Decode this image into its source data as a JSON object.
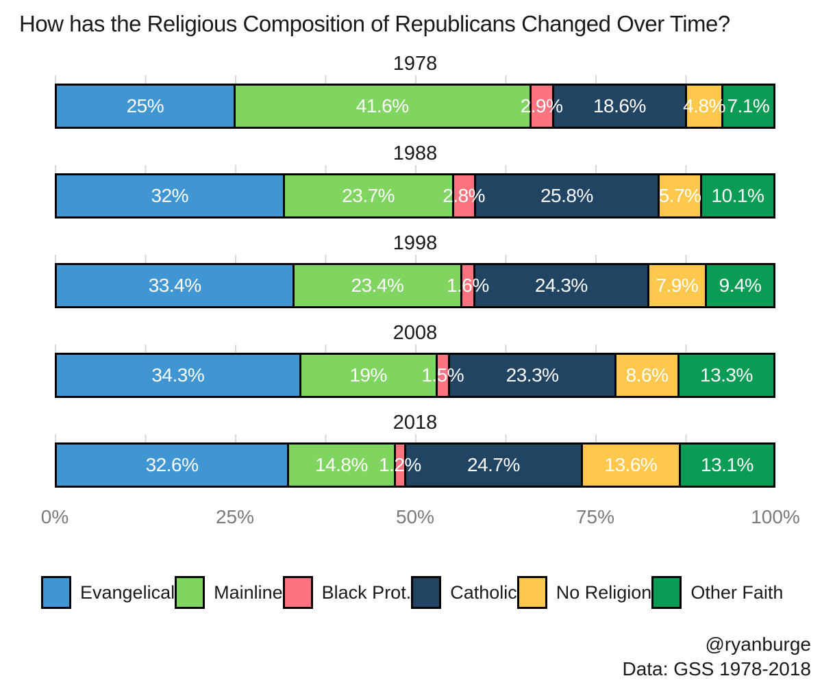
{
  "title": "How has the Religious Composition of Republicans Changed Over Time?",
  "footer": {
    "handle": "@ryanburge",
    "source": "Data: GSS 1978-2018"
  },
  "legend": {
    "items": [
      {
        "label": "Evangelical",
        "color": "#4096D2"
      },
      {
        "label": "Mainline",
        "color": "#7FD55F"
      },
      {
        "label": "Black Prot.",
        "color": "#FB737F"
      },
      {
        "label": "Catholic",
        "color": "#214463"
      },
      {
        "label": "No Religion",
        "color": "#FEC84D"
      },
      {
        "label": "Other Faith",
        "color": "#0A9B55"
      }
    ]
  },
  "chart_data": {
    "type": "bar",
    "stacked": true,
    "orientation": "horizontal",
    "categories": [
      "1978",
      "1988",
      "1998",
      "2008",
      "2018"
    ],
    "series": [
      {
        "name": "Evangelical",
        "color": "#4096D2",
        "values": [
          25,
          32,
          33.4,
          34.3,
          32.6
        ],
        "labels": [
          "25%",
          "32%",
          "33.4%",
          "34.3%",
          "32.6%"
        ]
      },
      {
        "name": "Mainline",
        "color": "#7FD55F",
        "values": [
          41.6,
          23.7,
          23.4,
          19,
          14.8
        ],
        "labels": [
          "41.6%",
          "23.7%",
          "23.4%",
          "19%",
          "14.8%"
        ]
      },
      {
        "name": "Black Prot.",
        "color": "#FB737F",
        "values": [
          2.9,
          2.8,
          1.6,
          1.5,
          1.2
        ],
        "labels": [
          "2.9%",
          "2.8%",
          "1.6%",
          "1.5%",
          "1.2%"
        ]
      },
      {
        "name": "Catholic",
        "color": "#214463",
        "values": [
          18.6,
          25.8,
          24.3,
          23.3,
          24.7
        ],
        "labels": [
          "18.6%",
          "25.8%",
          "24.3%",
          "23.3%",
          "24.7%"
        ]
      },
      {
        "name": "No Religion",
        "color": "#FEC84D",
        "values": [
          4.8,
          5.7,
          7.9,
          8.6,
          13.6
        ],
        "labels": [
          "4.8%",
          "5.7%",
          "7.9%",
          "8.6%",
          "13.6%"
        ]
      },
      {
        "name": "Other Faith",
        "color": "#0A9B55",
        "values": [
          7.1,
          10.1,
          9.4,
          13.3,
          13.1
        ],
        "labels": [
          "7.1%",
          "10.1%",
          "9.4%",
          "13.3%",
          "13.1%"
        ]
      }
    ],
    "x_ticks": [
      "0%",
      "25%",
      "50%",
      "75%",
      "100%"
    ],
    "xlim": [
      0,
      100
    ],
    "grid": "faint vertical minor gridlines every 12.5%",
    "legend_position": "bottom",
    "bar_label_color": "#ffffff",
    "bar_outline_color": "#000000"
  }
}
